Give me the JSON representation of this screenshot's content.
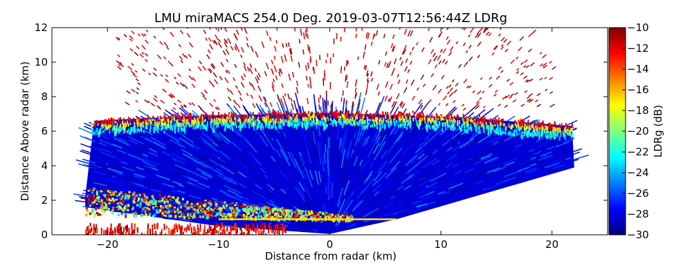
{
  "chart_data": {
    "type": "heatmap",
    "title": "LMU miraMACS 254.0 Deg. 2019-03-07T12:56:44Z  LDRg",
    "xlabel": "Distance from radar (km)",
    "ylabel": "Distance Above radar  (km)",
    "xlim": [
      -25,
      25
    ],
    "ylim": [
      0,
      12
    ],
    "xticks": [
      -20,
      -10,
      0,
      10,
      20
    ],
    "yticks": [
      0,
      2,
      4,
      6,
      8,
      10,
      12
    ],
    "colorbar": {
      "label": "LDRg (dB)",
      "range": [
        -30,
        -10
      ],
      "ticks": [
        -30,
        -28,
        -26,
        -24,
        -22,
        -20,
        -18,
        -16,
        -14,
        -12,
        -10
      ],
      "colormap": "jet",
      "colors": [
        "#00007f",
        "#0000ff",
        "#007fff",
        "#00ffff",
        "#7fff7f",
        "#ffff00",
        "#ff7f00",
        "#ff0000",
        "#7f0000"
      ]
    },
    "regions": [
      {
        "name": "cloud body",
        "x_range": [
          -22,
          22
        ],
        "y_range": [
          0.5,
          6.8
        ],
        "ldr_db": -28
      },
      {
        "name": "cloud top",
        "y_range": [
          6.3,
          7.2
        ],
        "ldr_db": -16
      },
      {
        "name": "sparse noise",
        "y_range": [
          7,
          12
        ],
        "ldr_db": -10
      },
      {
        "name": "low layer left",
        "x_range": [
          -22,
          0
        ],
        "y_range": [
          0.5,
          3
        ],
        "ldr_db": -20
      },
      {
        "name": "melting layer",
        "x_range": [
          -10,
          6
        ],
        "y_range": [
          0.8,
          1.0
        ],
        "ldr_db": -16
      }
    ]
  }
}
